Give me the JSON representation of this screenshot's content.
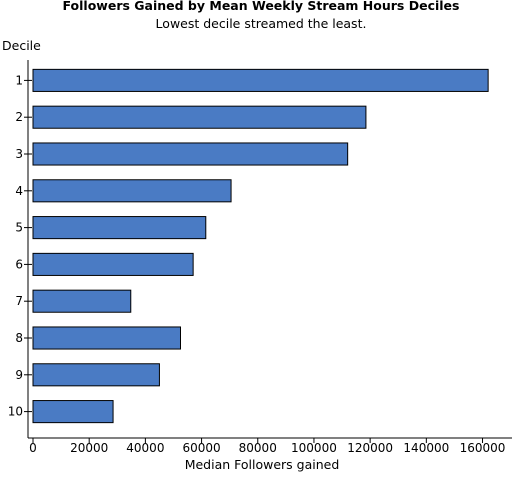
{
  "chart_data": {
    "type": "bar",
    "orientation": "horizontal",
    "title": "Followers Gained by Mean Weekly Stream Hours Deciles",
    "subtitle": "Lowest decile streamed the least.",
    "xlabel": "Median Followers gained",
    "ylabel": "Decile",
    "categories": [
      "1",
      "2",
      "3",
      "4",
      "5",
      "6",
      "7",
      "8",
      "9",
      "10"
    ],
    "values": [
      162000,
      118500,
      112000,
      70500,
      61500,
      57000,
      34800,
      52500,
      45000,
      28500
    ],
    "xlim": [
      0,
      168000
    ],
    "xticks": [
      0,
      20000,
      40000,
      60000,
      80000,
      100000,
      120000,
      140000,
      160000
    ],
    "grid": false,
    "bar_color": "#4a7bc4"
  }
}
